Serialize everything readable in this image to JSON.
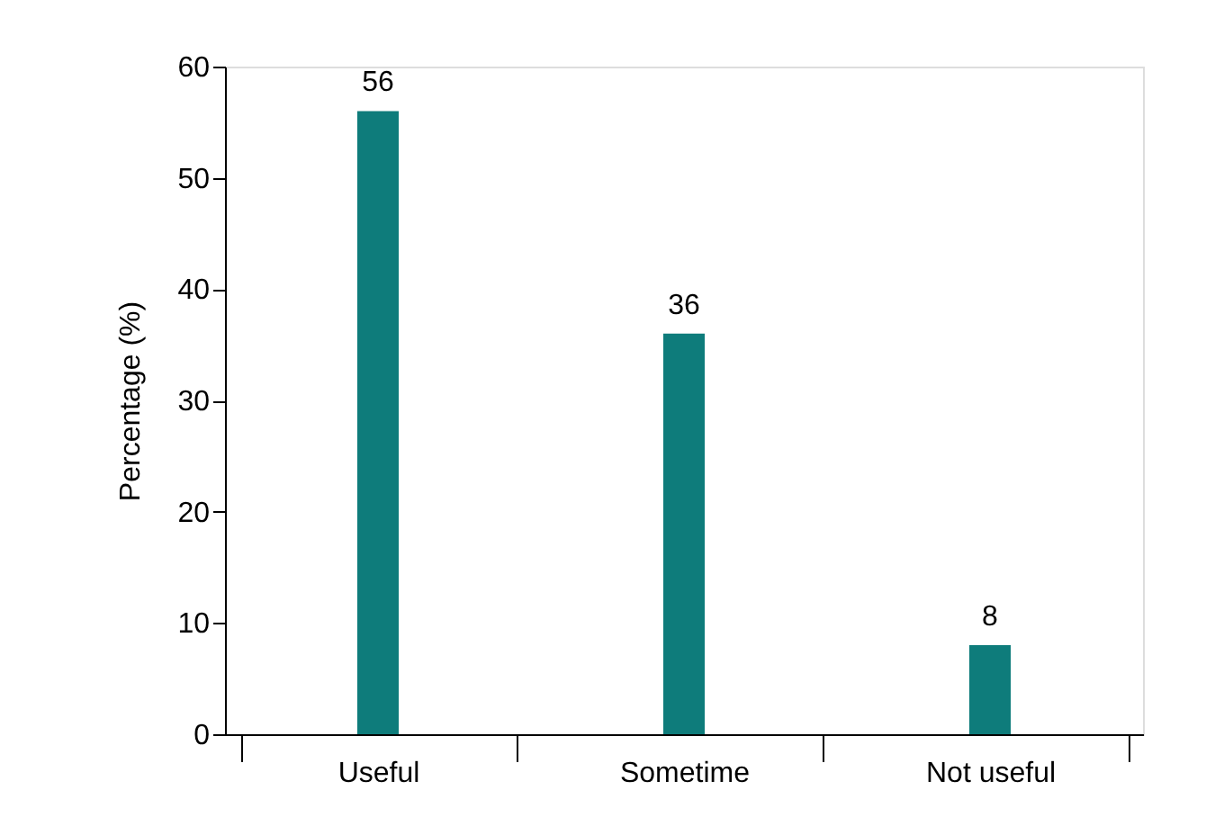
{
  "chart_data": {
    "type": "bar",
    "ylabel": "Percentage (%)",
    "categories": [
      "Useful",
      "Sometime",
      "Not useful"
    ],
    "values": [
      56,
      36,
      8
    ],
    "color": "#0e7c7b",
    "ylim": [
      0,
      60
    ],
    "yticks": [
      0,
      10,
      20,
      30,
      40,
      50,
      60
    ],
    "grid": false,
    "data_labels": true
  }
}
